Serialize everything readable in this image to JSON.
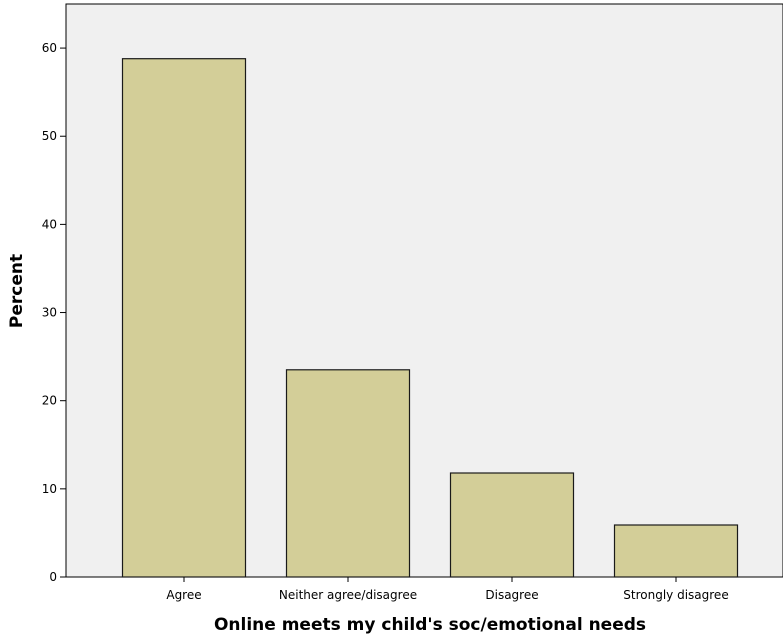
{
  "chart_data": {
    "type": "bar",
    "title": "",
    "xlabel": "Online meets my child's soc/emotional needs",
    "ylabel": "Percent",
    "categories": [
      "Agree",
      "Neither agree/disagree",
      "Disagree",
      "Strongly disagree"
    ],
    "values": [
      58.8,
      23.5,
      11.8,
      5.9
    ],
    "ylim": [
      0,
      65
    ],
    "yticks": [
      0,
      10,
      20,
      30,
      40,
      50,
      60
    ],
    "grid": false,
    "legend": "none",
    "colors": {
      "bar_fill": "#d3ce98",
      "bar_stroke": "#1a1a1a",
      "plot_background": "#f0f0f0",
      "axis": "#000000"
    }
  }
}
